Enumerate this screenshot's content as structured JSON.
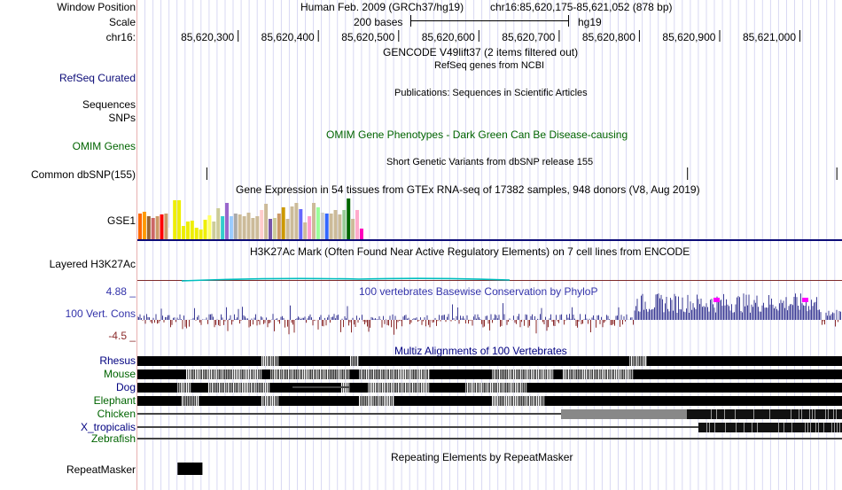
{
  "labels": {
    "window_position": "Window Position",
    "scale": "Scale",
    "chrom": "chr16:",
    "refseq": "RefSeq Curated",
    "sequences": "Sequences",
    "snps": "SNPs",
    "omim": "OMIM Genes",
    "dbsnp": "Common dbSNP(155)",
    "gse1": "GSE1",
    "h3k27ac": "Layered H3K27Ac",
    "cons_max": "4.88 _",
    "cons": "100 Vert. Cons",
    "cons_min": "-4.5 _",
    "repeatmasker": "RepeatMasker"
  },
  "header": {
    "assembly": "Human Feb. 2009 (GRCh37/hg19)",
    "position": "chr16:85,620,175-85,621,052 (878 bp)",
    "scale_text": "200 bases",
    "scale_db": "hg19",
    "ticks": [
      "85,620,300",
      "85,620,400",
      "85,620,500",
      "85,620,600",
      "85,620,700",
      "85,620,800",
      "85,620,900",
      "85,621,000"
    ]
  },
  "track_titles": {
    "gencode": "GENCODE V49lift37 (2 items filtered out)",
    "refseq": "RefSeq genes from NCBI",
    "publications": "Publications: Sequences in Scientific Articles",
    "omim": "OMIM Gene Phenotypes - Dark Green Can Be Disease-causing",
    "dbsnp": "Short Genetic Variants from dbSNP release 155",
    "gtex": "Gene Expression in 54 tissues from GTEx RNA-seq of 17382 samples, 948 donors (V8, Aug 2019)",
    "h3k27ac": "H3K27Ac Mark (Often Found Near Active Regulatory Elements) on 7 cell lines from ENCODE",
    "phylop": "100 vertebrates Basewise Conservation by PhyloP",
    "multiz": "Multiz Alignments of 100 Vertebrates",
    "repeats": "Repeating Elements by RepeatMasker"
  },
  "species": [
    {
      "name": "Rhesus",
      "color": "#000080"
    },
    {
      "name": "Mouse",
      "color": "#006400"
    },
    {
      "name": "Dog",
      "color": "#000080"
    },
    {
      "name": "Elephant",
      "color": "#006400"
    },
    {
      "name": "Chicken",
      "color": "#006400"
    },
    {
      "name": "X_tropicalis",
      "color": "#000080"
    },
    {
      "name": "Zebrafish",
      "color": "#006400"
    }
  ],
  "colors": {
    "refseq_label": "#0c0c78",
    "omim": "#006400",
    "phylop": "#3333aa",
    "phylop_pos": "#3c3c96",
    "phylop_neg": "#8b2a2a",
    "h3k27ac_line": "#00bfbf"
  },
  "gtex_colors": [
    "#ff6600",
    "#ff9900",
    "#996633",
    "#cc6666",
    "#cc9966",
    "#ff0000",
    "#cc9966",
    "#ffffff",
    "#eeee00",
    "#eeee00",
    "#eeee00",
    "#eeee00",
    "#eeee00",
    "#eeee00",
    "#eeee00",
    "#eeee00",
    "#ffff66",
    "#cccc99",
    "#cccc99",
    "#33cccc",
    "#9966cc",
    "#99ccff",
    "#aaaaaa",
    "#ccbb99",
    "#ccbb99",
    "#ccbb99",
    "#ccbb99",
    "#ccbb99",
    "#ffcccc",
    "#ccbb99",
    "#7755aa",
    "#cccc99",
    "#cc9966",
    "#cc9900",
    "#ccbb99",
    "#ccbb99",
    "#ccbb99",
    "#6666ff",
    "#ccbb99",
    "#ff99cc",
    "#ccbb99",
    "#99ff99",
    "#cccccc",
    "#3366ff",
    "#ccbb99",
    "#ccbb99",
    "#ccbb99",
    "#99cc99",
    "#006600",
    "#ccbb99",
    "#ffaacc",
    "#ff00bb"
  ],
  "gtex_heights": [
    0.62,
    0.67,
    0.57,
    0.53,
    0.56,
    0.6,
    0.63,
    0.28,
    0.95,
    0.95,
    0.32,
    0.43,
    0.45,
    0.28,
    0.24,
    0.47,
    0.58,
    0.44,
    0.75,
    0.57,
    0.89,
    0.56,
    0.64,
    0.61,
    0.56,
    0.65,
    0.53,
    0.56,
    0.71,
    0.88,
    0.49,
    0.53,
    0.64,
    0.78,
    0.51,
    0.81,
    0.9,
    0.73,
    0.41,
    0.57,
    0.89,
    0.79,
    0.66,
    0.62,
    0.62,
    0.71,
    0.61,
    0.71,
    1.0,
    0.51,
    0.71,
    0.25
  ],
  "dbsnp_ticks": [
    85620261,
    85620860,
    85621046
  ],
  "repeat_block": {
    "start": 85620225,
    "end": 85620256
  }
}
